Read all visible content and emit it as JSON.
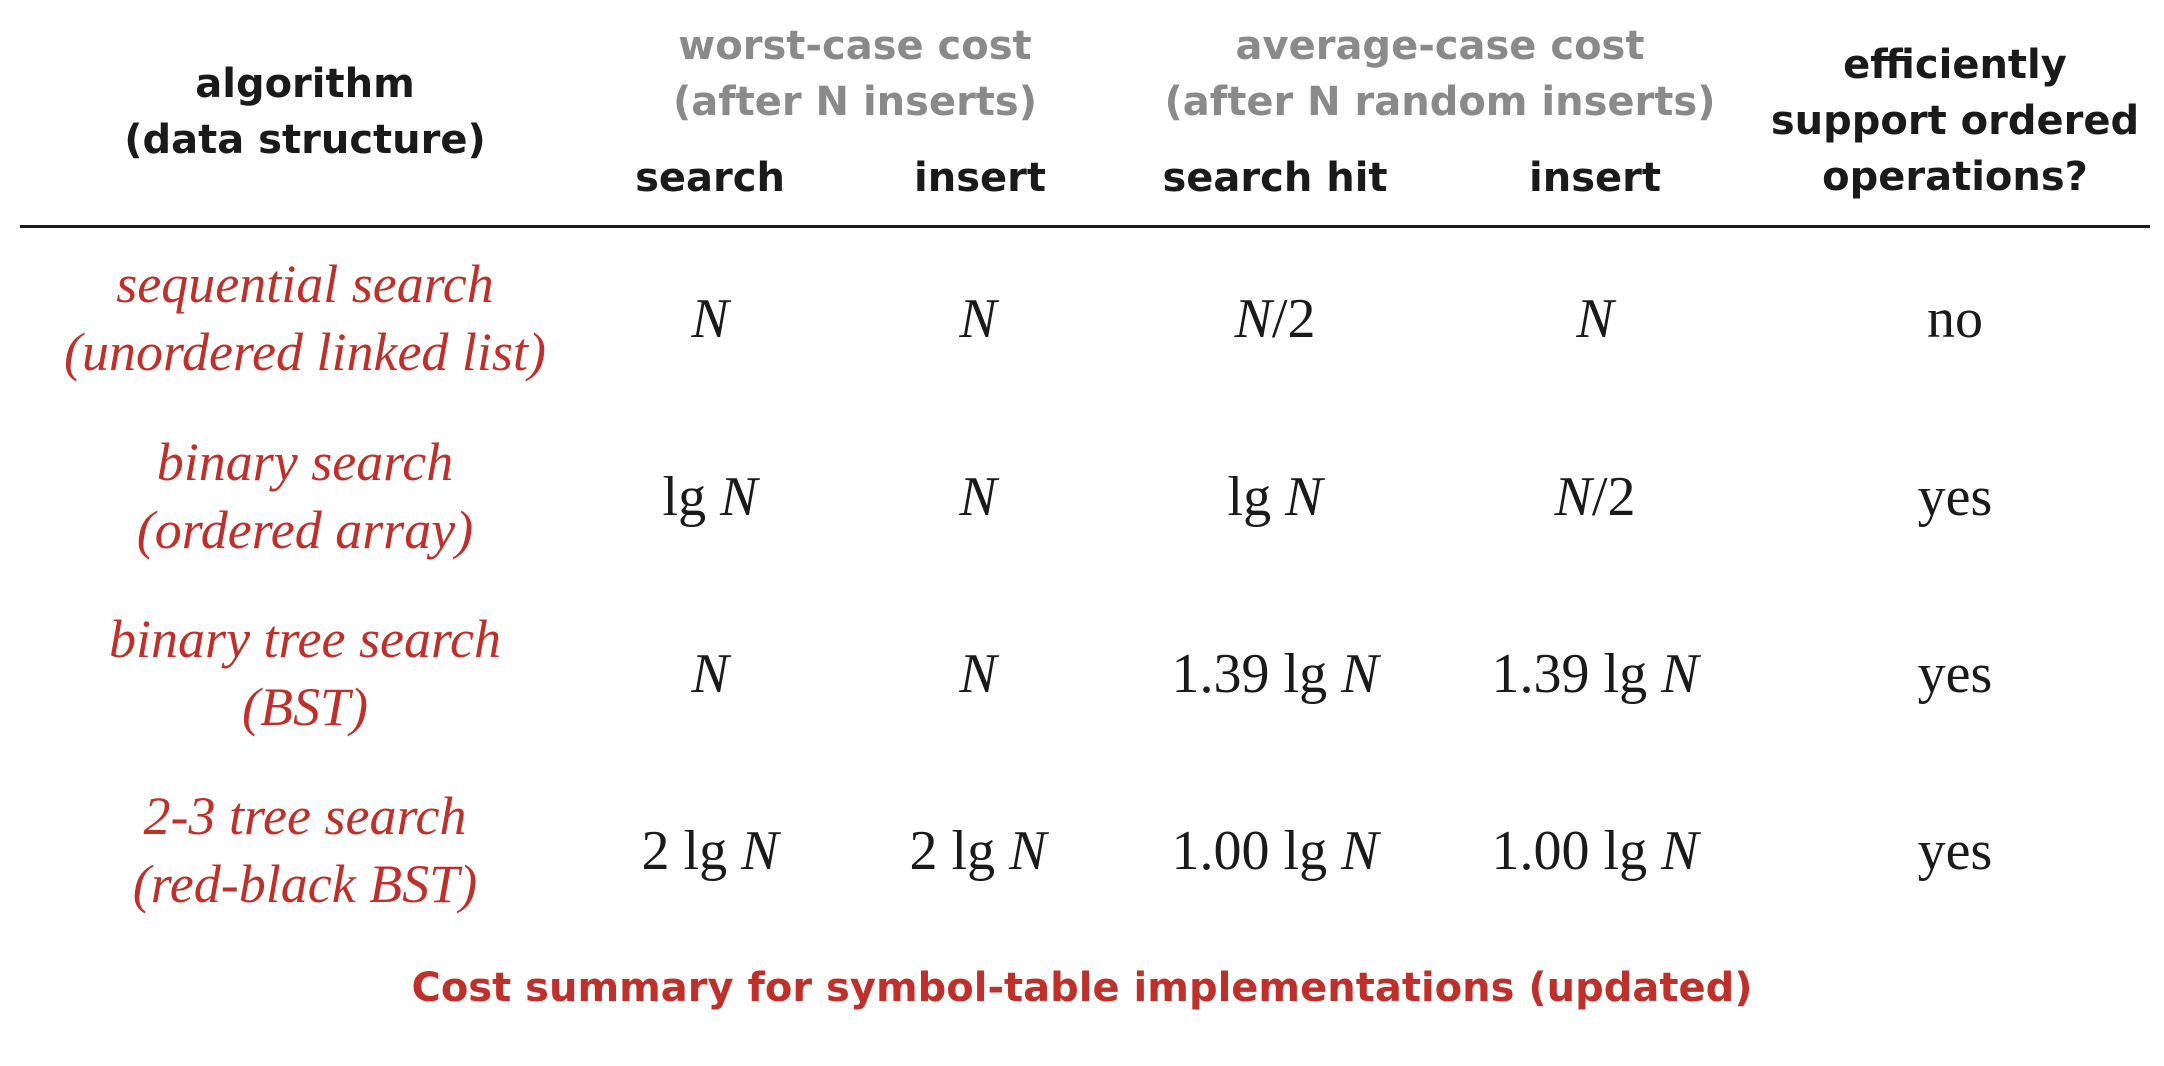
{
  "header": {
    "algorithm": [
      "algorithm",
      "(data structure)"
    ],
    "worst_case": [
      "worst-case cost",
      "(after N inserts)"
    ],
    "average_case": [
      "average-case cost",
      "(after N random inserts)"
    ],
    "ordered_ops": [
      "efficiently",
      "support ordered",
      "operations?"
    ],
    "sub": {
      "search": "search",
      "insert": "insert",
      "search_hit": "search hit",
      "avg_insert": "insert"
    }
  },
  "rows": [
    {
      "algorithm": [
        "sequential search",
        "(unordered linked list)"
      ],
      "worst_search": "N",
      "worst_insert": "N",
      "avg_search_hit": "N/2",
      "avg_insert": "N",
      "ordered": "no"
    },
    {
      "algorithm": [
        "binary search",
        "(ordered array)"
      ],
      "worst_search": "lg N",
      "worst_insert": "N",
      "avg_search_hit": "lg N",
      "avg_insert": "N/2",
      "ordered": "yes"
    },
    {
      "algorithm": [
        "binary tree search",
        "(BST)"
      ],
      "worst_search": "N",
      "worst_insert": "N",
      "avg_search_hit": "1.39 lg N",
      "avg_insert": "1.39 lg N",
      "ordered": "yes"
    },
    {
      "algorithm": [
        "2-3 tree search",
        "(red-black BST)"
      ],
      "worst_search": "2 lg N",
      "worst_insert": "2 lg N",
      "avg_search_hit": "1.00 lg N",
      "avg_insert": "1.00 lg N",
      "ordered": "yes"
    }
  ],
  "caption": "Cost summary for symbol-table implementations (updated)",
  "colors": {
    "accent_red": "#c0302a",
    "header_gray": "#8a8a8a",
    "text": "#1a1a1a"
  }
}
